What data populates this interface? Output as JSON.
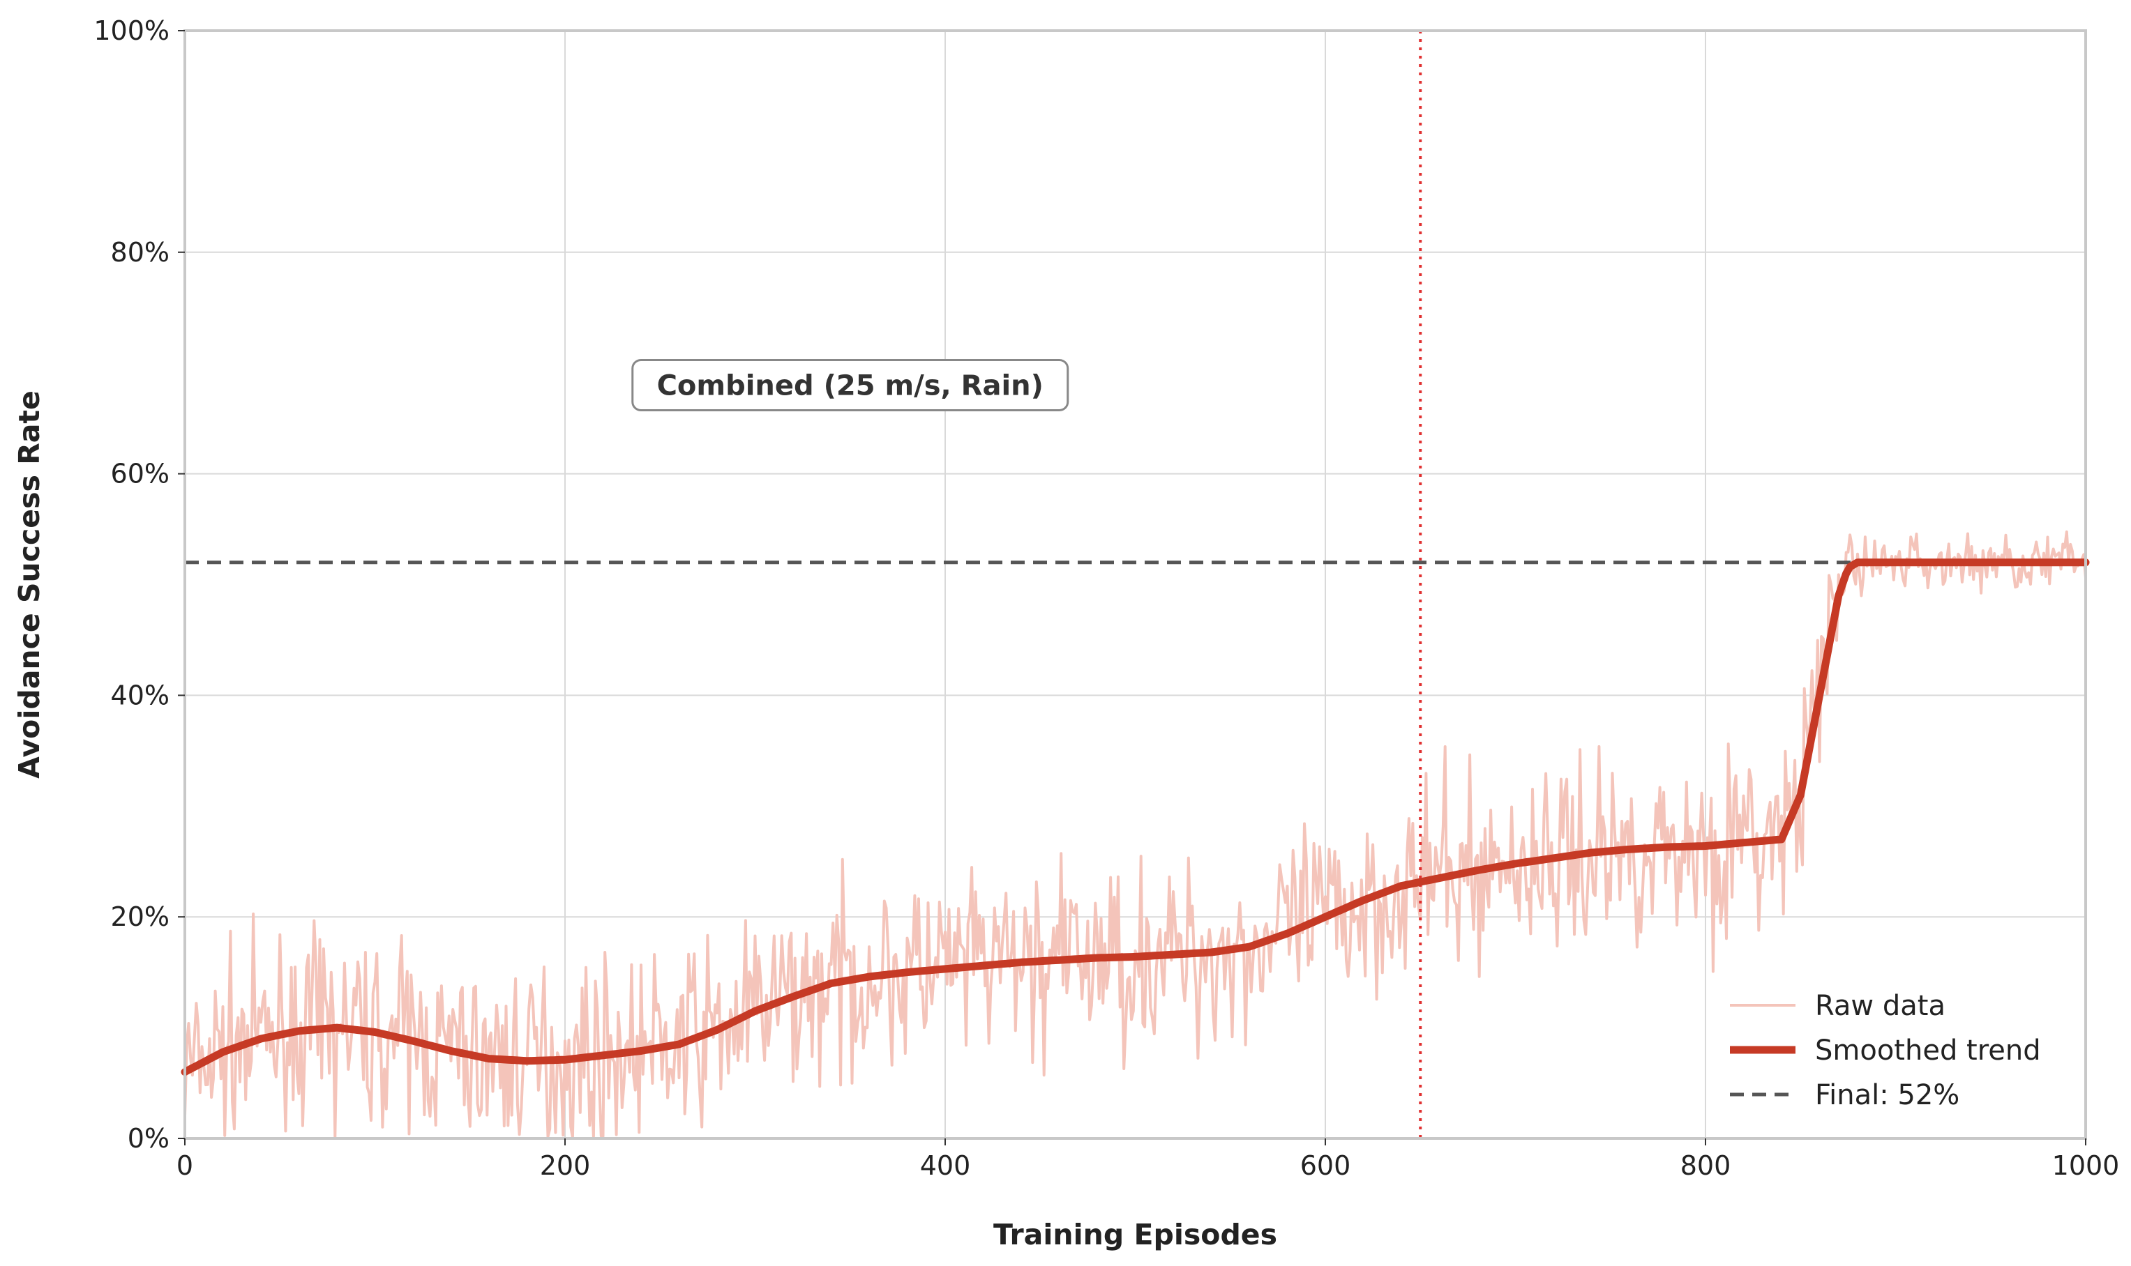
{
  "chart_data": {
    "type": "line",
    "title": "",
    "xlabel": "Training Episodes",
    "ylabel": "Avoidance Success Rate",
    "xlim": [
      0,
      1000
    ],
    "ylim": [
      0,
      100
    ],
    "x_ticks": [
      0,
      200,
      400,
      600,
      800,
      1000
    ],
    "x_tick_labels": [
      "0",
      "200",
      "400",
      "600",
      "800",
      "1000"
    ],
    "y_ticks": [
      0,
      20,
      40,
      60,
      80,
      100
    ],
    "y_tick_labels": [
      "0%",
      "20%",
      "40%",
      "60%",
      "80%",
      "100%"
    ],
    "grid": true,
    "legend_position": "lower-right",
    "annotation": {
      "text": "Combined (25 m/s, Rain)",
      "x": 350,
      "y": 68
    },
    "vertical_marker": {
      "x": 650,
      "color": "#e03030",
      "style": "dotted"
    },
    "series": [
      {
        "name": "Raw data",
        "color": "#f4c4ba",
        "noise_amplitude": 4,
        "noise_seed": 7
      },
      {
        "name": "Smoothed trend",
        "color": "#c63a25",
        "x": [
          0,
          20,
          40,
          60,
          80,
          100,
          120,
          140,
          160,
          180,
          200,
          220,
          240,
          260,
          280,
          300,
          320,
          340,
          360,
          380,
          400,
          420,
          440,
          460,
          480,
          500,
          520,
          540,
          560,
          580,
          600,
          620,
          640,
          660,
          680,
          700,
          720,
          740,
          760,
          780,
          800,
          820,
          840,
          850,
          860,
          870,
          875,
          880,
          900,
          920,
          940,
          960,
          980,
          1000
        ],
        "y": [
          6,
          7.8,
          9,
          9.7,
          10,
          9.6,
          8.8,
          7.9,
          7.2,
          7,
          7.1,
          7.5,
          7.9,
          8.5,
          9.8,
          11.5,
          12.8,
          14,
          14.6,
          15,
          15.3,
          15.6,
          15.9,
          16.1,
          16.3,
          16.4,
          16.6,
          16.8,
          17.3,
          18.5,
          20,
          21.5,
          22.8,
          23.5,
          24.2,
          24.8,
          25.3,
          25.8,
          26.1,
          26.3,
          26.4,
          26.7,
          27,
          31,
          40,
          49,
          51.5,
          52,
          52,
          52,
          52,
          52,
          52,
          52
        ]
      },
      {
        "name": "Final: 52%",
        "color": "#555555",
        "value": 52
      }
    ]
  }
}
